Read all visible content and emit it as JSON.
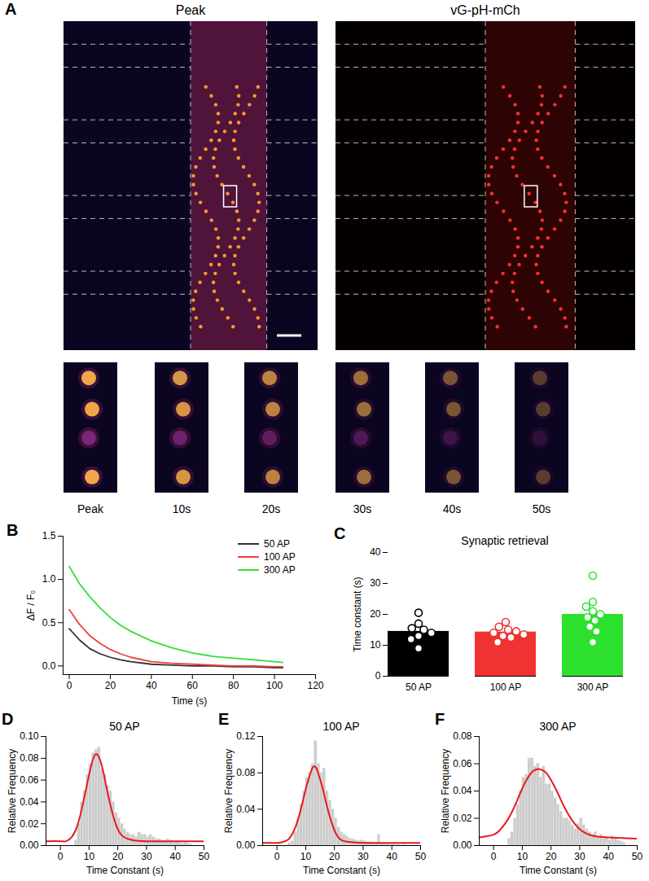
{
  "panel_a": {
    "panel": "A",
    "images": [
      {
        "title": "Peak"
      },
      {
        "title": "vG-pH-mCh"
      }
    ],
    "crop_labels": [
      "Peak",
      "10s",
      "20s",
      "30s",
      "40s",
      "50s"
    ]
  },
  "chart_data": [
    {
      "panel": "B",
      "type": "line",
      "x_label": "Time (s)",
      "y_label": "ΔF / F₀",
      "x": [
        0,
        5,
        10,
        15,
        20,
        25,
        30,
        40,
        50,
        60,
        70,
        80,
        90,
        100,
        104
      ],
      "series": [
        {
          "name": "50 AP",
          "color": "#333333",
          "values": [
            0.43,
            0.3,
            0.2,
            0.14,
            0.1,
            0.07,
            0.05,
            0.02,
            0.01,
            0.0,
            0.0,
            -0.01,
            -0.01,
            -0.02,
            -0.02
          ]
        },
        {
          "name": "100 AP",
          "color": "#f0413c",
          "values": [
            0.65,
            0.48,
            0.35,
            0.26,
            0.19,
            0.14,
            0.1,
            0.05,
            0.03,
            0.02,
            0.01,
            0.0,
            0.0,
            -0.01,
            -0.01
          ]
        },
        {
          "name": "300 AP",
          "color": "#33e033",
          "values": [
            1.15,
            0.95,
            0.8,
            0.67,
            0.56,
            0.47,
            0.4,
            0.29,
            0.21,
            0.15,
            0.11,
            0.09,
            0.07,
            0.05,
            0.04
          ]
        }
      ],
      "xlim": [
        -3,
        120
      ],
      "xticks": [
        0,
        20,
        40,
        60,
        80,
        100,
        120
      ],
      "ylim": [
        -0.1,
        1.5
      ],
      "yticks": [
        {
          "value": 0,
          "label": "0.0"
        },
        {
          "value": 0.5,
          "label": "0.5"
        },
        {
          "value": 1,
          "label": "1.0"
        },
        {
          "value": 1.5,
          "label": "1.5"
        }
      ],
      "legend": "upper right"
    },
    {
      "panel": "C",
      "type": "bar",
      "title": "Synaptic retrieval",
      "y_label": "Time constant (s)",
      "categories": [
        "50 AP",
        "100 AP",
        "300 AP"
      ],
      "values": [
        14.5,
        14.3,
        20.0
      ],
      "colors": [
        "#000000",
        "#f03232",
        "#2ee02e"
      ],
      "points": [
        [
          20.5,
          17,
          15.5,
          15,
          14,
          13,
          12,
          9
        ],
        [
          17.5,
          16,
          15,
          14.5,
          14,
          13.5,
          13,
          12.5,
          11
        ],
        [
          32.5,
          24,
          22.5,
          21,
          20,
          19,
          18,
          16,
          14.5,
          11
        ]
      ],
      "marker": "circle",
      "ylim": [
        0,
        40
      ],
      "yticks": [
        0,
        10,
        20,
        30,
        40
      ]
    },
    {
      "panel": "D",
      "type": "histogram",
      "title": "50 AP",
      "x_label": "Time Constant (s)",
      "y_label": "Relative Frequency",
      "bins": [
        5,
        6,
        7,
        8,
        9,
        10,
        11,
        12,
        13,
        14,
        15,
        16,
        17,
        18,
        19,
        20,
        21,
        22,
        23,
        24,
        25,
        26,
        27,
        28,
        29,
        30,
        31,
        32,
        33,
        34,
        35,
        36,
        37,
        38,
        39,
        40,
        41,
        42,
        43,
        44,
        45,
        46
      ],
      "counts": [
        0.005,
        0.02,
        0.04,
        0.05,
        0.065,
        0.075,
        0.085,
        0.088,
        0.09,
        0.07,
        0.065,
        0.055,
        0.05,
        0.04,
        0.03,
        0.025,
        0.02,
        0.015,
        0.012,
        0.01,
        0.01,
        0.008,
        0.012,
        0.01,
        0.01,
        0.008,
        0.01,
        0.008,
        0.006,
        0.006,
        0.005,
        0.004,
        0.006,
        0.005,
        0.003,
        0.004,
        0.003,
        0.002,
        0.003,
        0.002,
        0.001
      ],
      "color": "#cccccc",
      "fit": {
        "color": "#e8191b",
        "x": [
          -5,
          0,
          2,
          4,
          6,
          8,
          10,
          11,
          12,
          13,
          14,
          15,
          16,
          18,
          20,
          22,
          25,
          30,
          40,
          50
        ],
        "values": [
          0.004,
          0.004,
          0.004,
          0.008,
          0.019,
          0.04,
          0.065,
          0.076,
          0.083,
          0.083,
          0.077,
          0.067,
          0.054,
          0.031,
          0.015,
          0.008,
          0.005,
          0.004,
          0.004,
          0.004
        ]
      },
      "xlim": [
        -5,
        50
      ],
      "xticks": [
        0,
        10,
        20,
        30,
        40,
        50
      ],
      "ylim": [
        0,
        0.1
      ],
      "yticks": [
        {
          "value": 0,
          "label": "0.00"
        },
        {
          "value": 0.02,
          "label": "0.02"
        },
        {
          "value": 0.04,
          "label": "0.04"
        },
        {
          "value": 0.06,
          "label": "0.06"
        },
        {
          "value": 0.08,
          "label": "0.08"
        },
        {
          "value": 0.1,
          "label": "0.10"
        }
      ]
    },
    {
      "panel": "E",
      "type": "histogram",
      "title": "100 AP",
      "x_label": "Time Constant (s)",
      "y_label": "Relative Frequency",
      "bins": [
        4,
        5,
        6,
        7,
        8,
        9,
        10,
        11,
        12,
        13,
        14,
        15,
        16,
        17,
        18,
        19,
        20,
        21,
        22,
        23,
        24,
        25,
        26,
        27,
        28,
        29,
        30,
        31,
        32,
        33,
        34,
        35,
        36,
        37,
        38,
        39,
        40,
        41,
        42,
        43,
        44,
        45
      ],
      "counts": [
        0.003,
        0.005,
        0.015,
        0.03,
        0.045,
        0.06,
        0.075,
        0.08,
        0.09,
        0.115,
        0.09,
        0.08,
        0.085,
        0.06,
        0.05,
        0.04,
        0.03,
        0.02,
        0.015,
        0.012,
        0.01,
        0.008,
        0.007,
        0.006,
        0.005,
        0.006,
        0.005,
        0.004,
        0.004,
        0.003,
        0.003,
        0.012,
        0.003,
        0.002,
        0.002,
        0.001,
        0.002,
        0.001,
        0.001,
        0,
        0.001
      ],
      "color": "#cccccc",
      "fit": {
        "color": "#e8191b",
        "x": [
          -5,
          0,
          2,
          4,
          6,
          8,
          10,
          11,
          12,
          13,
          14,
          15,
          16,
          18,
          20,
          22,
          25,
          30,
          40,
          50
        ],
        "values": [
          0.003,
          0.003,
          0.004,
          0.007,
          0.017,
          0.036,
          0.062,
          0.073,
          0.083,
          0.087,
          0.083,
          0.073,
          0.062,
          0.036,
          0.017,
          0.007,
          0.004,
          0.003,
          0.003,
          0.003
        ]
      },
      "xlim": [
        -5,
        50
      ],
      "xticks": [
        0,
        10,
        20,
        30,
        40,
        50
      ],
      "ylim": [
        0,
        0.12
      ],
      "yticks": [
        {
          "value": 0,
          "label": "0.00"
        },
        {
          "value": 0.04,
          "label": "0.04"
        },
        {
          "value": 0.08,
          "label": "0.08"
        },
        {
          "value": 0.12,
          "label": "0.12"
        }
      ]
    },
    {
      "panel": "F",
      "type": "histogram",
      "title": "300 AP",
      "x_label": "Time Constant (s)",
      "y_label": "Relative Frequency",
      "bins": [
        5,
        6,
        7,
        8,
        9,
        10,
        11,
        12,
        13,
        14,
        15,
        16,
        17,
        18,
        19,
        20,
        21,
        22,
        23,
        24,
        25,
        26,
        27,
        28,
        29,
        30,
        31,
        32,
        33,
        34,
        35,
        36,
        37,
        38,
        39,
        40,
        41,
        42,
        43,
        44,
        45,
        46
      ],
      "counts": [
        0.005,
        0.01,
        0.02,
        0.03,
        0.04,
        0.05,
        0.052,
        0.064,
        0.064,
        0.058,
        0.06,
        0.05,
        0.058,
        0.045,
        0.045,
        0.04,
        0.035,
        0.03,
        0.025,
        0.02,
        0.02,
        0.018,
        0.015,
        0.012,
        0.016,
        0.02,
        0.015,
        0.012,
        0.01,
        0.008,
        0.01,
        0.006,
        0.008,
        0.005,
        0.006,
        0.004,
        0.007,
        0.005,
        0.004,
        0.003,
        0.002
      ],
      "color": "#cccccc",
      "fit": {
        "color": "#e8191b",
        "x": [
          -5,
          0,
          2,
          4,
          6,
          8,
          10,
          12,
          14,
          16,
          18,
          20,
          22,
          24,
          26,
          30,
          35,
          40,
          50
        ],
        "values": [
          0.006,
          0.008,
          0.011,
          0.016,
          0.023,
          0.032,
          0.042,
          0.05,
          0.055,
          0.056,
          0.054,
          0.048,
          0.04,
          0.031,
          0.023,
          0.012,
          0.007,
          0.006,
          0.005
        ]
      },
      "xlim": [
        -5,
        50
      ],
      "xticks": [
        0,
        10,
        20,
        30,
        40,
        50
      ],
      "ylim": [
        0,
        0.08
      ],
      "yticks": [
        {
          "value": 0,
          "label": "0.00"
        },
        {
          "value": 0.02,
          "label": "0.02"
        },
        {
          "value": 0.04,
          "label": "0.04"
        },
        {
          "value": 0.06,
          "label": "0.06"
        },
        {
          "value": 0.08,
          "label": "0.08"
        }
      ]
    }
  ]
}
